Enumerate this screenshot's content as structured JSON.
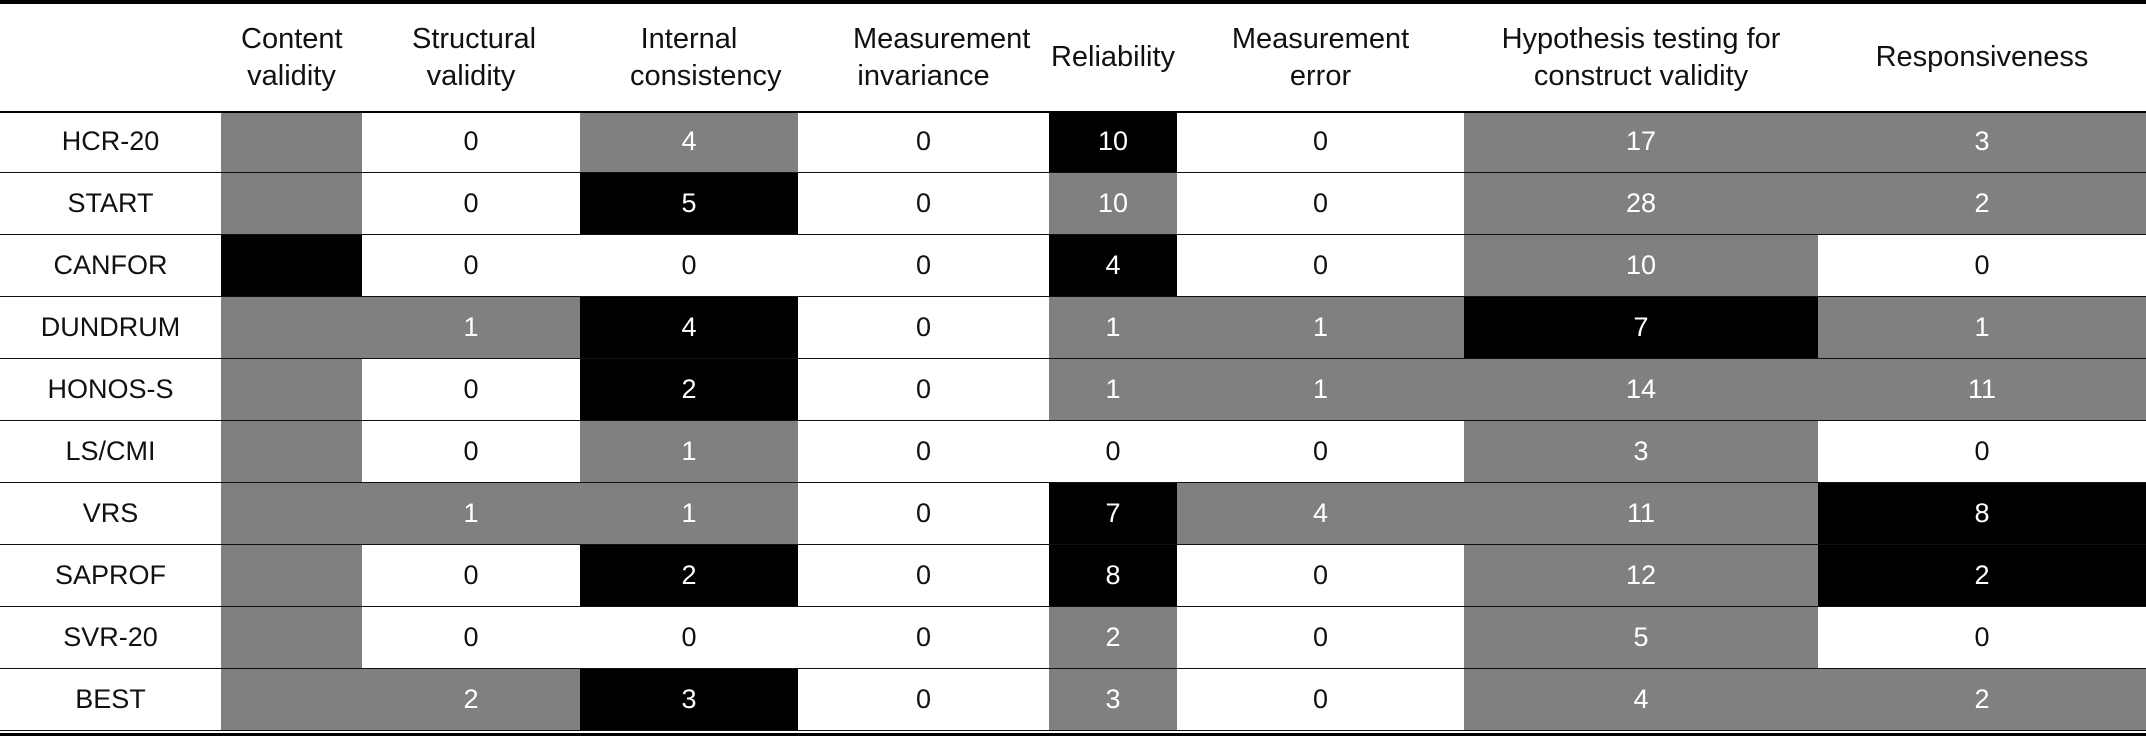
{
  "columns": [
    "",
    "Content validity",
    "Structural validity",
    "Internal consistency",
    "Measurement invariance",
    "Reliability",
    "Measurement error",
    "Hypothesis testing for construct validity",
    "Responsiveness"
  ],
  "colors": {
    "white": "#ffffff",
    "grey": "#808083",
    "black": "#000000"
  },
  "rows": [
    {
      "name": "HCR-20",
      "cells": [
        {
          "v": "",
          "s": 1
        },
        {
          "v": "0",
          "s": 0
        },
        {
          "v": "4",
          "s": 1
        },
        {
          "v": "0",
          "s": 0
        },
        {
          "v": "10",
          "s": 2
        },
        {
          "v": "0",
          "s": 0
        },
        {
          "v": "17",
          "s": 1
        },
        {
          "v": "3",
          "s": 1
        }
      ]
    },
    {
      "name": "START",
      "cells": [
        {
          "v": "",
          "s": 1
        },
        {
          "v": "0",
          "s": 0
        },
        {
          "v": "5",
          "s": 2
        },
        {
          "v": "0",
          "s": 0
        },
        {
          "v": "10",
          "s": 1
        },
        {
          "v": "0",
          "s": 0
        },
        {
          "v": "28",
          "s": 1
        },
        {
          "v": "2",
          "s": 1
        }
      ]
    },
    {
      "name": "CANFOR",
      "cells": [
        {
          "v": "",
          "s": 2
        },
        {
          "v": "0",
          "s": 0
        },
        {
          "v": "0",
          "s": 0
        },
        {
          "v": "0",
          "s": 0
        },
        {
          "v": "4",
          "s": 2
        },
        {
          "v": "0",
          "s": 0
        },
        {
          "v": "10",
          "s": 1
        },
        {
          "v": "0",
          "s": 0
        }
      ]
    },
    {
      "name": "DUNDRUM",
      "cells": [
        {
          "v": "",
          "s": 1
        },
        {
          "v": "1",
          "s": 1
        },
        {
          "v": "4",
          "s": 2
        },
        {
          "v": "0",
          "s": 0
        },
        {
          "v": "1",
          "s": 1
        },
        {
          "v": "1",
          "s": 1
        },
        {
          "v": "7",
          "s": 2
        },
        {
          "v": "1",
          "s": 1
        }
      ]
    },
    {
      "name": "HONOS-S",
      "cells": [
        {
          "v": "",
          "s": 1
        },
        {
          "v": "0",
          "s": 0
        },
        {
          "v": "2",
          "s": 2
        },
        {
          "v": "0",
          "s": 0
        },
        {
          "v": "1",
          "s": 1
        },
        {
          "v": "1",
          "s": 1
        },
        {
          "v": "14",
          "s": 1
        },
        {
          "v": "11",
          "s": 1
        }
      ]
    },
    {
      "name": "LS/CMI",
      "cells": [
        {
          "v": "",
          "s": 1
        },
        {
          "v": "0",
          "s": 0
        },
        {
          "v": "1",
          "s": 1
        },
        {
          "v": "0",
          "s": 0
        },
        {
          "v": "0",
          "s": 0
        },
        {
          "v": "0",
          "s": 0
        },
        {
          "v": "3",
          "s": 1
        },
        {
          "v": "0",
          "s": 0
        }
      ]
    },
    {
      "name": "VRS",
      "cells": [
        {
          "v": "",
          "s": 1
        },
        {
          "v": "1",
          "s": 1
        },
        {
          "v": "1",
          "s": 1
        },
        {
          "v": "0",
          "s": 0
        },
        {
          "v": "7",
          "s": 2
        },
        {
          "v": "4",
          "s": 1
        },
        {
          "v": "11",
          "s": 1
        },
        {
          "v": "8",
          "s": 2
        }
      ]
    },
    {
      "name": "SAPROF",
      "cells": [
        {
          "v": "",
          "s": 1
        },
        {
          "v": "0",
          "s": 0
        },
        {
          "v": "2",
          "s": 2
        },
        {
          "v": "0",
          "s": 0
        },
        {
          "v": "8",
          "s": 2
        },
        {
          "v": "0",
          "s": 0
        },
        {
          "v": "12",
          "s": 1
        },
        {
          "v": "2",
          "s": 2
        }
      ]
    },
    {
      "name": "SVR-20",
      "cells": [
        {
          "v": "",
          "s": 1
        },
        {
          "v": "0",
          "s": 0
        },
        {
          "v": "0",
          "s": 0
        },
        {
          "v": "0",
          "s": 0
        },
        {
          "v": "2",
          "s": 1
        },
        {
          "v": "0",
          "s": 0
        },
        {
          "v": "5",
          "s": 1
        },
        {
          "v": "0",
          "s": 0
        }
      ]
    },
    {
      "name": "BEST",
      "cells": [
        {
          "v": "",
          "s": 1
        },
        {
          "v": "2",
          "s": 1
        },
        {
          "v": "3",
          "s": 2
        },
        {
          "v": "0",
          "s": 0
        },
        {
          "v": "3",
          "s": 1
        },
        {
          "v": "0",
          "s": 0
        },
        {
          "v": "4",
          "s": 1
        },
        {
          "v": "2",
          "s": 1
        }
      ]
    }
  ]
}
